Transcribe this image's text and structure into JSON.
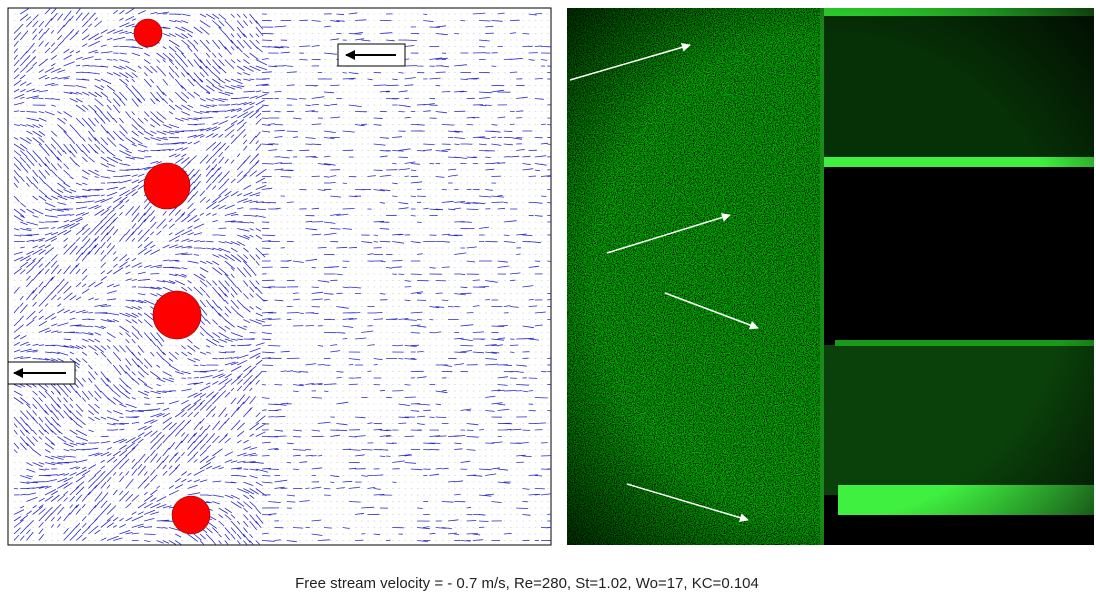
{
  "caption": "Free stream velocity = - 0.7 m/s, Re=280, St=1.02, Wo=17, KC=0.104"
}
